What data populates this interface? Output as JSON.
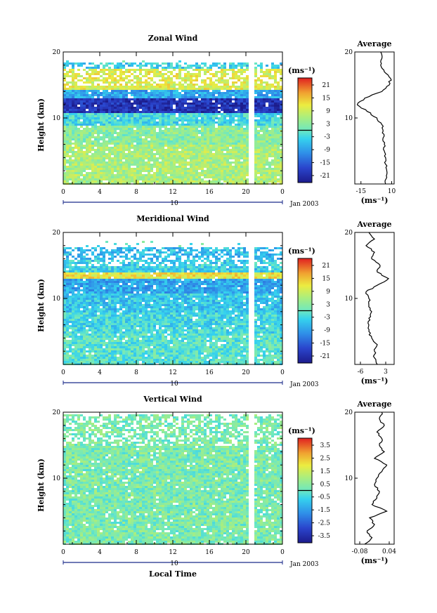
{
  "chart_data": [
    {
      "type": "heatmap",
      "title": "Zonal Wind",
      "ylabel": "Height (km)",
      "xlabel": "",
      "ylim": [
        0,
        20
      ],
      "yticks": [
        "20",
        "10"
      ],
      "x_ticks": [
        "0",
        "4",
        "8",
        "12",
        "16",
        "20",
        "0"
      ],
      "date_tick": "10",
      "date_label": "Jan 2003",
      "colorbar": {
        "unit": "(ms⁻¹)",
        "ticks": [
          "21",
          "15",
          "9",
          "3",
          "-3",
          "-9",
          "-15",
          "-21"
        ],
        "range": [
          -24,
          24
        ]
      },
      "profile": {
        "title": "Average",
        "xticks": [
          "-15",
          "10"
        ],
        "xlim": [
          -20,
          12
        ],
        "unit": "(ms⁻¹)",
        "height": [
          0,
          1,
          2,
          3,
          4,
          5,
          6,
          7,
          8,
          9,
          10,
          11,
          12,
          13,
          14,
          15,
          16,
          17,
          18,
          19,
          20
        ],
        "values": [
          5,
          6,
          6,
          5,
          5,
          4,
          4,
          3,
          3,
          2,
          -2,
          -10,
          -18,
          -12,
          2,
          8,
          9,
          4,
          1,
          2,
          1
        ]
      },
      "fields": [
        {
          "z": [
            0,
            6
          ],
          "value": 6
        },
        {
          "z": [
            6,
            9
          ],
          "value": 3
        },
        {
          "z": [
            9,
            11
          ],
          "value": -3
        },
        {
          "z": [
            11,
            13
          ],
          "value": -20
        },
        {
          "z": [
            13,
            14.5
          ],
          "value": -8
        },
        {
          "z": [
            14.5,
            17.5
          ],
          "value": 10
        },
        {
          "z": [
            17.5,
            18.5
          ],
          "value": -4
        }
      ]
    },
    {
      "type": "heatmap",
      "title": "Meridional Wind",
      "ylabel": "Height (km)",
      "xlabel": "",
      "ylim": [
        0,
        20
      ],
      "yticks": [
        "20",
        "10"
      ],
      "x_ticks": [
        "0",
        "4",
        "8",
        "12",
        "16",
        "20",
        "0"
      ],
      "date_tick": "10",
      "date_label": "Jan 2003",
      "colorbar": {
        "unit": "(ms⁻¹)",
        "ticks": [
          "21",
          "15",
          "9",
          "3",
          "-3",
          "-9",
          "-15",
          "-21"
        ],
        "range": [
          -24,
          24
        ]
      },
      "profile": {
        "title": "Average",
        "xticks": [
          "-6",
          "3"
        ],
        "xlim": [
          -8,
          6
        ],
        "unit": "(ms⁻¹)",
        "height": [
          0,
          1,
          2,
          3,
          4,
          5,
          6,
          7,
          8,
          9,
          10,
          11,
          12,
          13,
          14,
          15,
          16,
          17,
          18,
          19,
          20
        ],
        "values": [
          0,
          -1,
          -1,
          0,
          -2,
          -3,
          -3,
          -3,
          -2,
          -3,
          -3,
          -4,
          0,
          4,
          0,
          1,
          -2,
          -1,
          -4,
          -1,
          -3
        ]
      },
      "fields": [
        {
          "z": [
            0,
            5
          ],
          "value": -1
        },
        {
          "z": [
            5,
            8
          ],
          "value": -3
        },
        {
          "z": [
            8,
            11
          ],
          "value": -5
        },
        {
          "z": [
            11,
            13
          ],
          "value": -8
        },
        {
          "z": [
            13,
            14
          ],
          "value": 12
        },
        {
          "z": [
            14,
            16
          ],
          "value": -4
        },
        {
          "z": [
            16,
            18
          ],
          "value": -6
        }
      ]
    },
    {
      "type": "heatmap",
      "title": "Vertical Wind",
      "ylabel": "Height (km)",
      "xlabel": "Local Time",
      "ylim": [
        0,
        20
      ],
      "yticks": [
        "20",
        "10"
      ],
      "x_ticks": [
        "0",
        "4",
        "8",
        "12",
        "16",
        "20",
        "0"
      ],
      "date_tick": "10",
      "date_label": "Jan 2003",
      "colorbar": {
        "unit": "(ms⁻¹)",
        "ticks": [
          "3.5",
          "2.5",
          "1.5",
          "0.5",
          "-0.5",
          "-1.5",
          "-2.5",
          "-3.5"
        ],
        "range": [
          -4,
          4
        ]
      },
      "profile": {
        "title": "Average",
        "xticks": [
          "-0.08",
          "0.04"
        ],
        "xlim": [
          -0.1,
          0.06
        ],
        "unit": "(ms⁻¹)",
        "height": [
          0,
          1,
          2,
          3,
          4,
          5,
          6,
          7,
          8,
          9,
          10,
          11,
          12,
          13,
          14,
          15,
          16,
          17,
          18,
          19,
          20
        ],
        "values": [
          -0.06,
          -0.03,
          -0.05,
          -0.02,
          -0.04,
          0.03,
          -0.03,
          -0.01,
          0.0,
          -0.02,
          -0.01,
          0.01,
          0.03,
          -0.02,
          0.02,
          0.0,
          0.01,
          -0.01,
          0.02,
          0.0,
          0.01
        ]
      },
      "fields": [
        {
          "z": [
            0,
            20
          ],
          "value": 0.3
        }
      ]
    }
  ]
}
